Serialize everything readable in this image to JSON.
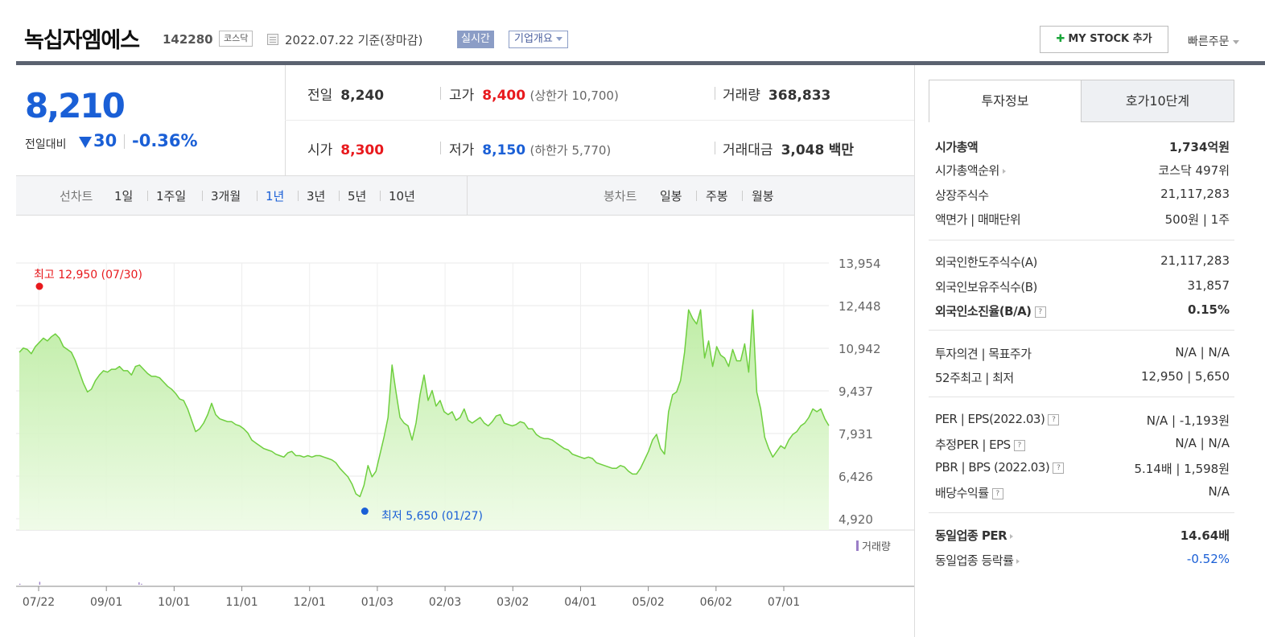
{
  "header": {
    "company_name": "녹십자엠에스",
    "stock_code": "142280",
    "market": "코스닥",
    "date_text": "2022.07.22  기준(장마감)",
    "realtime_label": "실시간",
    "company_info_label": "기업개요",
    "mystock_label": "MY STOCK 추가",
    "quick_order_label": "빠른주문"
  },
  "price": {
    "current": "8,210",
    "change_label": "전일대비",
    "change_value": "30",
    "change_rate": "-0.36%",
    "prev_close_label": "전일",
    "prev_close": "8,240",
    "high_label": "고가",
    "high": "8,400",
    "upper_limit_text": "(상한가 10,700)",
    "volume_label": "거래량",
    "volume": "368,833",
    "open_label": "시가",
    "open": "8,300",
    "low_label": "저가",
    "low": "8,150",
    "lower_limit_text": "(하한가 5,770)",
    "trade_value_label": "거래대금",
    "trade_value": "3,048",
    "trade_value_unit": "백만"
  },
  "chart_controls": {
    "line_chart_label": "선차트",
    "periods": [
      "1일",
      "1주일",
      "3개월",
      "1년",
      "3년",
      "5년",
      "10년"
    ],
    "active_period": "1년",
    "candle_chart_label": "봉차트",
    "candle_periods": [
      "일봉",
      "주봉",
      "월봉"
    ]
  },
  "colors": {
    "rise": "#e8191d",
    "fall": "#1a5fd6",
    "line": "#6fcf3f",
    "volume_bar": "#9b7fc7"
  },
  "chart_data": {
    "type": "area",
    "title": "",
    "ylim": [
      4920,
      13954
    ],
    "yticks": [
      "13,954",
      "12,448",
      "10,942",
      "9,437",
      "7,931",
      "6,426",
      "4,920"
    ],
    "xticks": [
      "07/22",
      "09/01",
      "10/01",
      "11/01",
      "12/01",
      "01/03",
      "02/03",
      "03/02",
      "04/01",
      "05/02",
      "06/02",
      "07/01"
    ],
    "max_label": "최고 12,950 (07/30)",
    "min_label": "최저 5,650 (01/27)",
    "volume_label": "거래량",
    "grid": true,
    "series": [
      {
        "values": [
          10800,
          10950,
          10900,
          10750,
          11000,
          11150,
          11300,
          11200,
          11350,
          11450,
          11300,
          11000,
          10900,
          10800,
          10500,
          10100,
          9700,
          9400,
          9500,
          9800,
          10000,
          10150,
          10100,
          10200,
          10200,
          10300,
          10150,
          10150,
          10000,
          10300,
          10350,
          10200,
          10050,
          9950,
          9950,
          9900,
          9750,
          9600,
          9500,
          9350,
          9150,
          9100,
          8800,
          8400,
          8000,
          8100,
          8300,
          8600,
          9000,
          8600,
          8450,
          8400,
          8350,
          8350,
          8250,
          8200,
          8100,
          7950,
          7700,
          7600,
          7500,
          7400,
          7350,
          7300,
          7200,
          7150,
          7100,
          7250,
          7300,
          7150,
          7150,
          7100,
          7150,
          7100,
          7150,
          7150,
          7100,
          7050,
          7000,
          6900,
          6700,
          6550,
          6400,
          6150,
          5800,
          5700,
          6100,
          6800,
          6400,
          6600,
          7200,
          7800,
          8500,
          10350,
          9400,
          8500,
          8300,
          8200,
          7700,
          8300,
          9300,
          10000,
          9100,
          9450,
          8900,
          9100,
          8700,
          8600,
          8700,
          8400,
          8500,
          8800,
          8400,
          8300,
          8400,
          8500,
          8300,
          8200,
          8350,
          8550,
          8600,
          8300,
          8250,
          8200,
          8250,
          8350,
          8300,
          8100,
          8100,
          7900,
          7800,
          7750,
          7750,
          7700,
          7600,
          7500,
          7400,
          7350,
          7200,
          7150,
          7100,
          7050,
          7100,
          7050,
          6900,
          6850,
          6800,
          6750,
          6700,
          6700,
          6800,
          6750,
          6600,
          6500,
          6500,
          6700,
          7000,
          7300,
          7700,
          7900,
          7400,
          7200,
          8700,
          9300,
          9400,
          9800,
          10800,
          12300,
          12000,
          11800,
          12300,
          10600,
          11200,
          10300,
          11000,
          10700,
          10600,
          10300,
          10900,
          10500,
          10500,
          11100,
          10100,
          12300,
          9400,
          8800,
          7800,
          7400,
          7100,
          7300,
          7500,
          7400,
          7700,
          7900,
          8000,
          8200,
          8300,
          8500,
          8800,
          8700,
          8800,
          8450,
          8210
        ]
      }
    ],
    "volume": [
      0.02,
      0.0,
      0.0,
      0.0,
      0.0,
      0.0,
      0.0,
      0.0,
      0.06,
      0.0,
      0.0,
      0.0,
      0.0,
      0.0,
      0.0,
      0.0,
      0.0,
      0.0,
      0.0,
      0.0,
      0.0,
      0.0,
      0.0,
      0.0,
      0.0,
      0.0,
      0.0,
      0.0,
      0.0,
      0.0,
      0.0,
      0.0,
      0.0,
      0.0,
      0.0,
      0.0,
      0.0,
      0.0,
      0.0,
      0.0,
      0.0,
      0.0,
      0.0,
      0.0,
      0.0,
      0.0,
      0.0,
      0.0,
      0.05,
      0.02,
      0.0,
      0.0,
      0.0,
      0.0,
      0.0,
      0.0,
      0.0,
      0.0,
      0.0,
      0.0,
      0.0,
      0.0,
      0.0,
      0.0,
      0.0,
      0.0,
      0.0,
      0.0,
      0.0,
      0.0,
      0.0,
      0.0,
      0.0,
      0.0,
      0.0,
      0.0,
      0.0,
      0.0,
      0.0,
      0.0,
      0.0,
      0.0,
      0.0,
      0.0,
      0.0,
      0.0,
      0.0,
      0.0,
      0.0,
      0.0,
      0.0,
      0.0,
      0.0,
      0.0,
      0.0,
      0.0,
      0.0,
      0.0,
      0.0,
      0.0,
      0.0,
      0.0,
      0.0,
      0.0,
      0.0,
      0.0,
      0.0,
      0.0,
      0.0,
      0.0,
      0.0,
      0.0,
      0.0,
      0.0,
      0.0,
      0.0,
      0.0,
      0.0,
      0.0,
      0.0,
      0.0,
      0.0,
      0.0,
      0.0,
      0.0,
      0.0,
      0.0,
      0.0,
      0.0,
      0.0,
      0.0,
      0.0,
      0.0,
      0.0,
      0.0,
      0.0,
      0.0,
      0.0,
      0.0,
      0.0,
      0.0,
      0.0,
      0.0,
      0.0,
      0.0,
      0.0,
      0.0,
      0.0,
      0.0,
      0.0,
      0.0,
      0.0,
      0.0,
      0.0,
      0.0,
      0.0,
      0.0,
      0.0,
      0.0,
      0.0,
      0.0,
      0.0,
      0.0,
      0.0,
      0.0,
      0.0,
      0.0,
      0.0,
      0.0,
      0.0,
      0.0,
      0.0,
      0.0,
      0.0,
      0.0,
      0.0,
      0.0,
      0.0,
      0.0,
      0.0,
      0.0,
      0.0,
      0.0,
      0.0,
      0.0,
      0.0,
      0.0,
      0.0,
      0.0,
      0.0,
      0.0,
      0.0,
      0.0,
      0.0,
      0.0,
      0.0,
      0.0,
      0.0,
      0.0,
      0.0,
      0.0,
      0.0,
      0.0,
      0.0,
      0.0,
      0.0,
      0.0,
      0.0,
      0.0,
      0.0,
      0.0,
      0.0,
      0.0,
      0.0,
      0.0,
      0.0,
      0.0,
      0.0,
      0.0,
      0.0,
      0.0,
      0.0,
      0.0,
      0.0,
      0.0,
      0.0,
      0.0,
      0.0,
      0.0,
      0.0,
      0.0,
      0.0,
      0.0,
      0.0,
      0.0,
      0.0,
      0.0,
      0.0,
      0.0,
      0.0,
      0.0,
      0.0,
      0.0,
      0.0,
      0.0,
      0.0,
      0.0,
      0.0,
      0.0,
      0.0,
      0.0,
      0.0,
      0.0,
      0.0,
      0.0,
      0.0,
      0.0,
      0.0,
      0.0,
      0.0,
      0.0,
      0.0,
      0.0,
      0.0,
      0.0,
      0.0,
      0.0,
      0.0,
      0.0,
      0.0,
      0.0,
      0.0,
      0.0,
      0.0,
      0.0,
      0.0,
      0.0,
      0.0,
      0.0,
      0.0,
      0.0,
      0.0,
      0.0,
      0.0,
      0.0,
      0.0,
      0.0,
      0.0,
      0.0,
      0.0,
      0.0,
      0.0,
      0.0,
      0.0,
      0.0,
      0.0,
      0.0,
      0.0,
      0.0,
      0.0,
      0.0,
      0.0,
      0.0,
      0.0,
      0.0,
      0.0,
      0.0,
      0.0,
      0.0,
      0.0,
      0.0,
      0.0,
      0.0,
      0.0,
      0.0,
      0.0,
      0.0,
      0.0,
      0.0,
      0.0,
      0.0,
      0.0,
      0.0,
      0.0,
      0.0,
      0.0,
      0.0
    ]
  },
  "tabs": {
    "invest_info": "투자정보",
    "orderbook": "호가10단계"
  },
  "invest_info": {
    "g1": [
      {
        "label": "시가총액",
        "value": "1,734억원",
        "bold": true
      },
      {
        "label": "시가총액순위",
        "value": "코스닥 497위",
        "arrow": true
      },
      {
        "label": "상장주식수",
        "value": "21,117,283"
      },
      {
        "label": "액면가 | 매매단위",
        "value": "500원 | 1주"
      }
    ],
    "g2": [
      {
        "label": "외국인한도주식수(A)",
        "value": "21,117,283"
      },
      {
        "label": "외국인보유주식수(B)",
        "value": "31,857"
      },
      {
        "label": "외국인소진율(B/A)",
        "value": "0.15%",
        "bold": true,
        "help": true
      }
    ],
    "g3": [
      {
        "label": "투자의견 | 목표주가",
        "value": "N/A | N/A"
      },
      {
        "label": "52주최고 | 최저",
        "value": "12,950 | 5,650"
      }
    ],
    "g4": [
      {
        "label": "PER | EPS(2022.03)",
        "value": "N/A | -1,193원",
        "help": true
      },
      {
        "label": "추정PER | EPS",
        "value": "N/A | N/A",
        "help": true
      },
      {
        "label": "PBR | BPS (2022.03)",
        "value": "5.14배 | 1,598원",
        "help": true
      },
      {
        "label": "배당수익률",
        "value": "N/A",
        "help": true
      }
    ],
    "g5": [
      {
        "label": "동일업종 PER",
        "value": "14.64배",
        "bold": true,
        "arrow": true
      },
      {
        "label": "동일업종 등락률",
        "value": "-0.52%",
        "arrow": true,
        "blue": true
      }
    ]
  }
}
